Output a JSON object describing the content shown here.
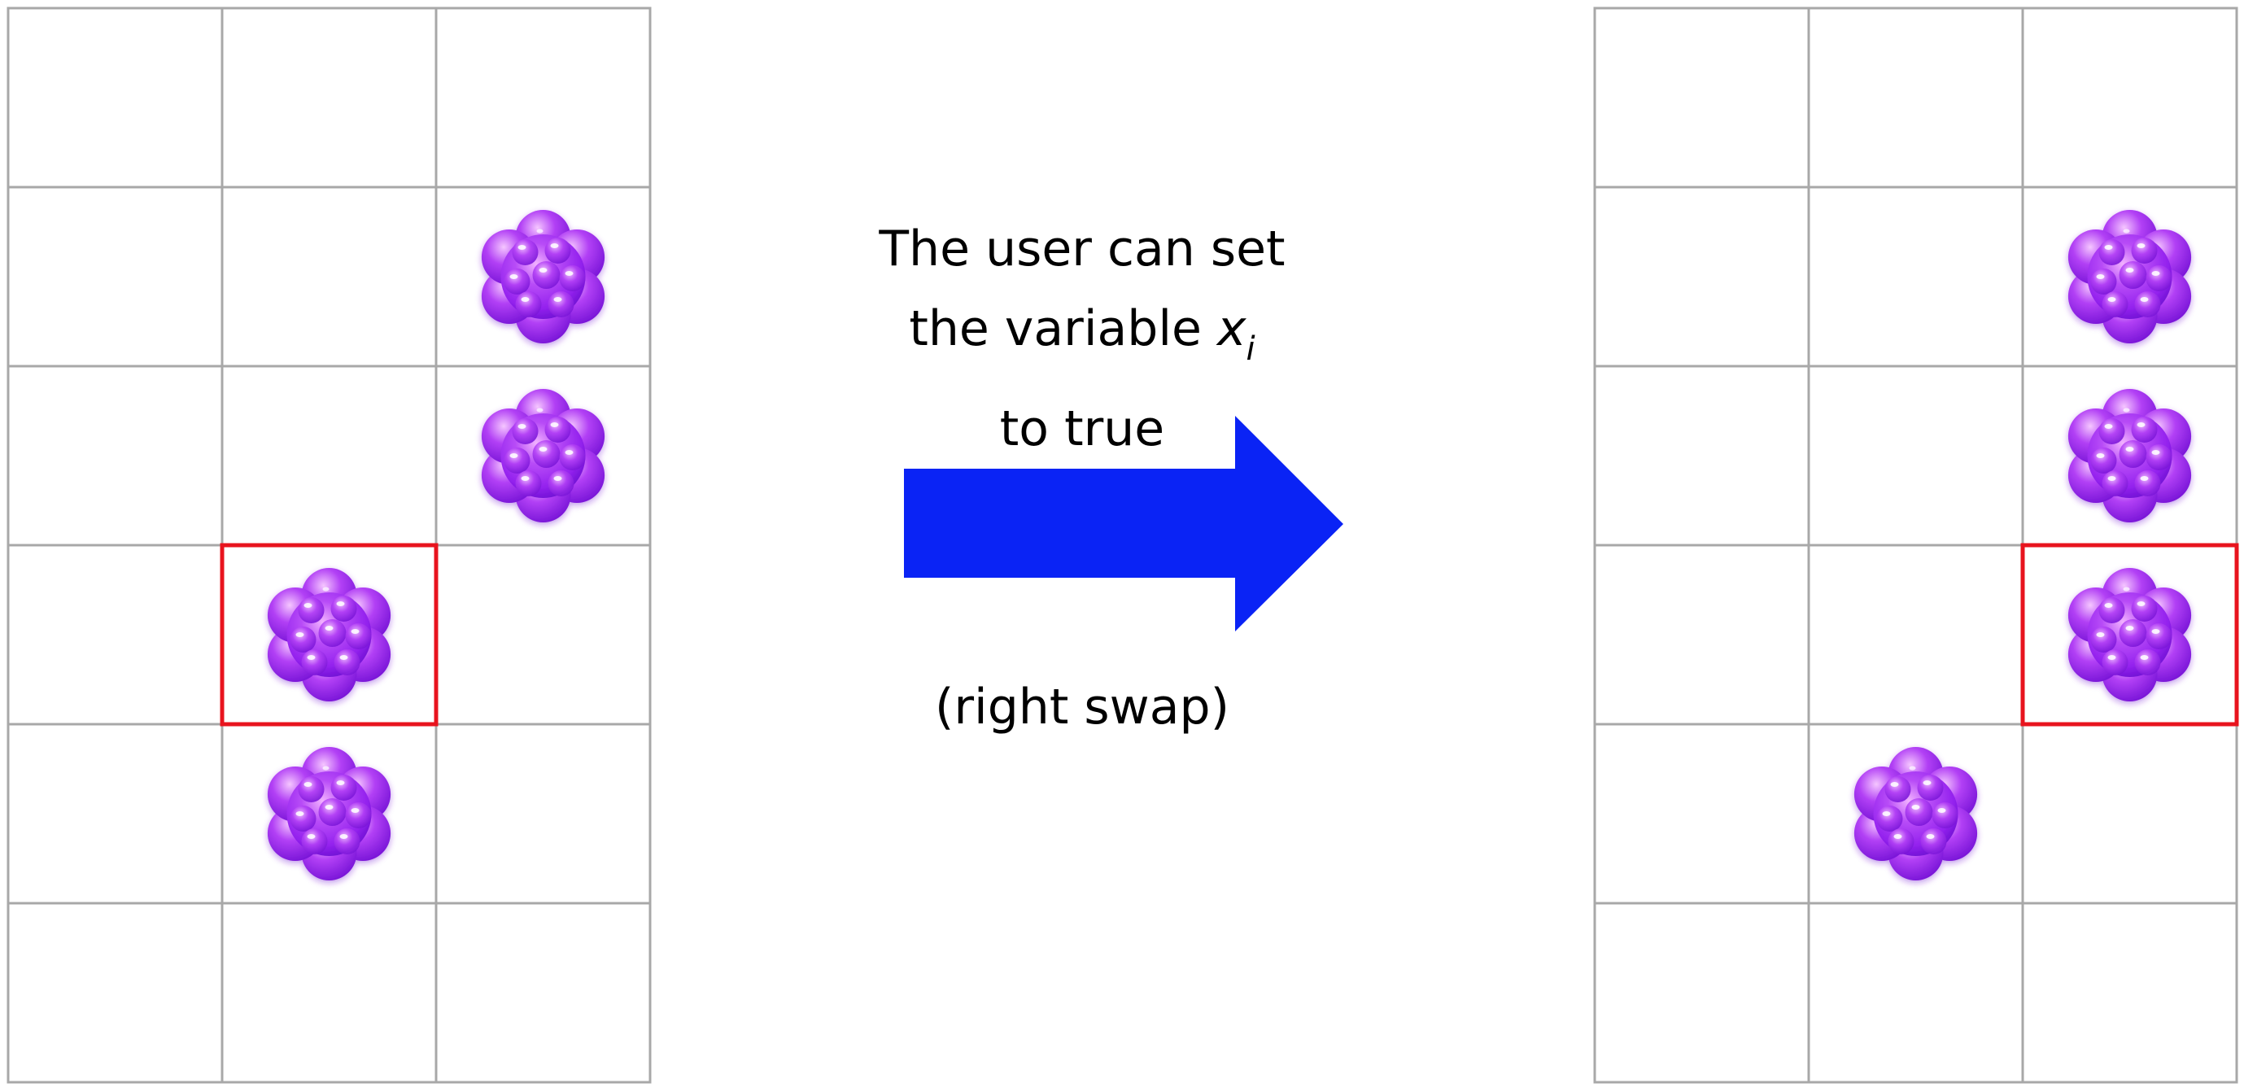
{
  "caption": {
    "line1": "The user can set",
    "line2_prefix": "the variable",
    "variable_symbol": "x",
    "variable_subscript": "i",
    "line3": "to true",
    "note": "(right swap)"
  },
  "colors": {
    "grid_line": "#a8a8a8",
    "highlight": "#e8141e",
    "arrow": "#0a23f5",
    "candy_base": "#9b2df0",
    "candy_light": "#e88cff",
    "candy_dark": "#6a0fd0"
  },
  "icons": {
    "candy": "purple-candy-cluster-icon",
    "arrow": "right-arrow-icon"
  },
  "boards": [
    {
      "name": "before",
      "rows": 6,
      "cols": 3,
      "candies": [
        [
          1,
          2
        ],
        [
          2,
          2
        ],
        [
          3,
          1
        ],
        [
          4,
          1
        ]
      ],
      "highlight": [
        3,
        1
      ]
    },
    {
      "name": "after",
      "rows": 6,
      "cols": 3,
      "candies": [
        [
          1,
          2
        ],
        [
          2,
          2
        ],
        [
          3,
          2
        ],
        [
          4,
          1
        ]
      ],
      "highlight": [
        3,
        2
      ]
    }
  ]
}
